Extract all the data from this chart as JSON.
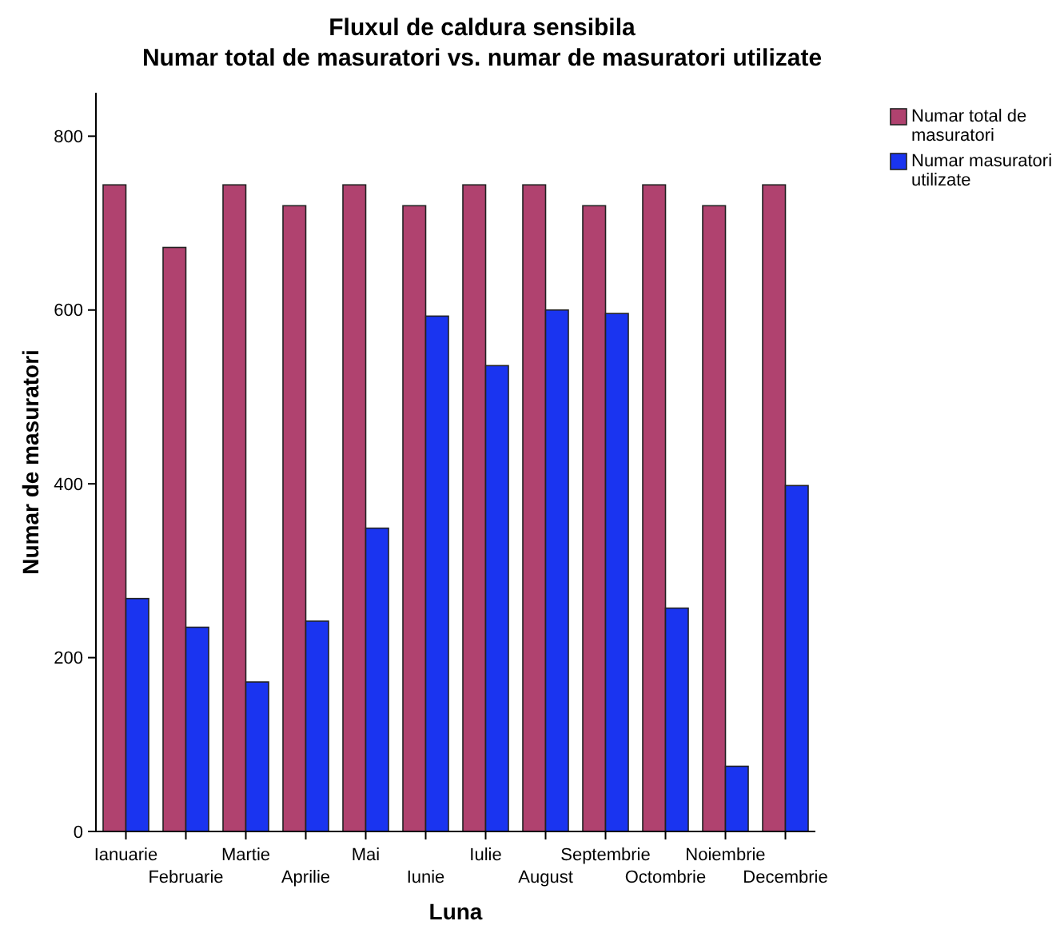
{
  "chart_data": {
    "type": "bar",
    "title": "Fluxul de caldura sensibila",
    "subtitle": "Numar total de masuratori vs. numar de masuratori utilizate",
    "xlabel": "Luna",
    "ylabel": "Numar de masuratori",
    "categories": [
      "Ianuarie",
      "Februarie",
      "Martie",
      "Aprilie",
      "Mai",
      "Iunie",
      "Iulie",
      "August",
      "Septembrie",
      "Octombrie",
      "Noiembrie",
      "Decembrie"
    ],
    "series": [
      {
        "name": "Numar total de masuratori",
        "color": "#b0426f",
        "values": [
          744,
          672,
          744,
          720,
          744,
          720,
          744,
          744,
          720,
          744,
          720,
          744
        ]
      },
      {
        "name": "Numar masuratori utilizate",
        "color": "#1a34f0",
        "values": [
          268,
          235,
          172,
          242,
          349,
          593,
          536,
          600,
          596,
          257,
          75,
          398
        ]
      }
    ],
    "ylim": [
      0,
      850
    ],
    "yticks": [
      0,
      200,
      400,
      600,
      800
    ],
    "grid": false,
    "legend": "top right"
  }
}
